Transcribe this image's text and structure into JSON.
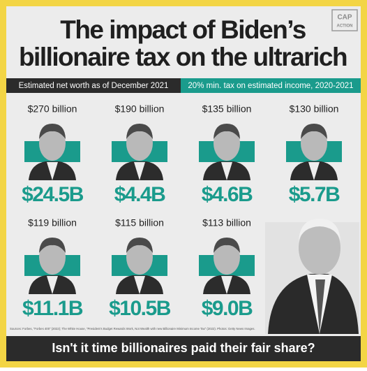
{
  "header": {
    "title_lines": [
      "The impact of Biden’s",
      "billionaire tax on the ultrarich"
    ],
    "logo_lines": [
      "CAP",
      "ACTION"
    ]
  },
  "legend": {
    "net_worth_label": "Estimated net worth as of December 2021",
    "tax_label": "20% min. tax on estimated income, 2020-2021"
  },
  "people": [
    {
      "net_worth": "$270 billion",
      "tax": "$24.5B"
    },
    {
      "net_worth": "$190 billion",
      "tax": "$4.4B"
    },
    {
      "net_worth": "$135 billion",
      "tax": "$4.6B"
    },
    {
      "net_worth": "$130 billion",
      "tax": "$5.7B"
    },
    {
      "net_worth": "$119 billion",
      "tax": "$11.1B"
    },
    {
      "net_worth": "$115 billion",
      "tax": "$10.5B"
    },
    {
      "net_worth": "$113 billion",
      "tax": "$9.0B"
    }
  ],
  "sources": "Sources: Forbes, “Forbes 400” (2022); The White House, “President’s Budget Rewards Work, Not Wealth with new Billionaire Minimum Income Tax” (2022). Photos: Getty News Images.",
  "footer": "Isn't it time billionaires paid their fair share?"
}
